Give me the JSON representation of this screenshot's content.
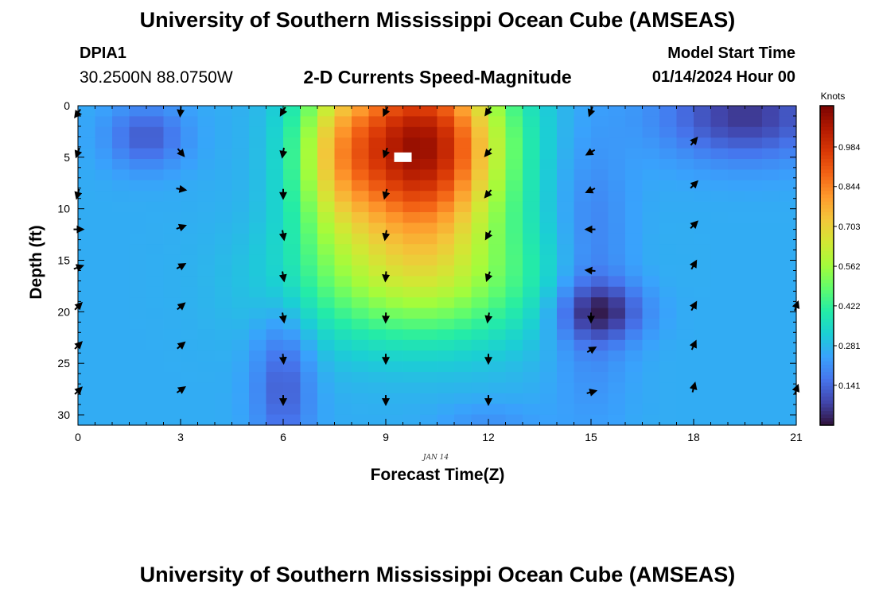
{
  "header": {
    "title": "University of Southern Mississippi Ocean Cube (AMSEAS)",
    "station_id": "DPIA1",
    "station_coords": "30.2500N  88.0750W",
    "subtitle": "2-D Currents Speed-Magnitude",
    "model_start_label": "Model Start Time",
    "model_start_value": "01/14/2024 Hour 00"
  },
  "footer": {
    "title": "University of Southern Mississippi Ocean Cube (AMSEAS)"
  },
  "chart_data": {
    "type": "heatmap",
    "title": "2-D Currents Speed-Magnitude",
    "xlabel": "Forecast Time(Z)",
    "ylabel": "Depth (ft)",
    "x_ticks": [
      0,
      3,
      6,
      9,
      12,
      15,
      18,
      21
    ],
    "y_ticks": [
      0,
      5,
      10,
      15,
      20,
      25,
      30
    ],
    "xlim": [
      0,
      21
    ],
    "ylim": [
      0,
      31
    ],
    "date_label": "JAN 14",
    "colorbar": {
      "label": "Knots",
      "ticks": [
        "0.984",
        "0.844",
        "0.703",
        "0.562",
        "0.422",
        "0.281",
        "0.141"
      ],
      "tick_values": [
        0.984,
        0.844,
        0.703,
        0.562,
        0.422,
        0.281,
        0.141
      ],
      "range": [
        0.0,
        1.13
      ],
      "colors": [
        "#30123b",
        "#4145ab",
        "#4675ed",
        "#39a2fc",
        "#1bcfd4",
        "#24eca6",
        "#61fc6c",
        "#a4fc3b",
        "#d1e834",
        "#f3c63a",
        "#fe9b2d",
        "#f36315",
        "#d93806",
        "#b11901",
        "#7a0402"
      ]
    },
    "speed_model": {
      "base": 0.26,
      "features": [
        {
          "name": "core-jet",
          "t": 10,
          "d": 4,
          "st": 1.7,
          "sd": 6.5,
          "amp": 0.82
        },
        {
          "name": "jet-lower",
          "t": 10,
          "d": 17,
          "st": 2.6,
          "sd": 4.5,
          "amp": 0.28
        },
        {
          "name": "left-jet-flank",
          "t": 7.5,
          "d": 5,
          "st": 0.9,
          "sd": 6,
          "amp": 0.25
        },
        {
          "name": "upper-left-slack",
          "t": 2,
          "d": 3,
          "st": 0.8,
          "sd": 2.2,
          "amp": -0.14
        },
        {
          "name": "slack-6h-column",
          "t": 6,
          "d": 27,
          "st": 0.6,
          "sd": 5,
          "amp": -0.14
        },
        {
          "name": "slack-15h-spot",
          "t": 15.3,
          "d": 20,
          "st": 0.9,
          "sd": 2,
          "amp": -0.19
        },
        {
          "name": "slack-15h-column",
          "t": 15,
          "d": 16,
          "st": 0.8,
          "sd": 9,
          "amp": -0.1
        },
        {
          "name": "upper-right-slack",
          "t": 19.5,
          "d": 1,
          "st": 1.7,
          "sd": 3,
          "amp": -0.2
        },
        {
          "name": "bottom-12h",
          "t": 12,
          "d": 31,
          "st": 1,
          "sd": 1.5,
          "amp": -0.05
        }
      ]
    },
    "vectors": [
      {
        "t": 0,
        "d": 0.7,
        "dir": 215
      },
      {
        "t": 0,
        "d": 4.5,
        "dir": 200
      },
      {
        "t": 0,
        "d": 8.5,
        "dir": 195
      },
      {
        "t": 0,
        "d": 12,
        "dir": 90
      },
      {
        "t": 0,
        "d": 15.7,
        "dir": 70
      },
      {
        "t": 0,
        "d": 19.5,
        "dir": 45
      },
      {
        "t": 0,
        "d": 23.3,
        "dir": 45
      },
      {
        "t": 0,
        "d": 27.7,
        "dir": 45
      },
      {
        "t": 3,
        "d": 0.5,
        "dir": 185
      },
      {
        "t": 3,
        "d": 4.5,
        "dir": 140
      },
      {
        "t": 3,
        "d": 8.1,
        "dir": 100
      },
      {
        "t": 3,
        "d": 11.8,
        "dir": 70
      },
      {
        "t": 3,
        "d": 15.6,
        "dir": 60
      },
      {
        "t": 3,
        "d": 19.5,
        "dir": 50
      },
      {
        "t": 3,
        "d": 23.3,
        "dir": 50
      },
      {
        "t": 3,
        "d": 27.6,
        "dir": 55
      },
      {
        "t": 6,
        "d": 0.5,
        "dir": 210
      },
      {
        "t": 6,
        "d": 4.5,
        "dir": 190
      },
      {
        "t": 6,
        "d": 8.5,
        "dir": 180
      },
      {
        "t": 6,
        "d": 12.5,
        "dir": 170
      },
      {
        "t": 6,
        "d": 16.5,
        "dir": 170
      },
      {
        "t": 6,
        "d": 20.5,
        "dir": 170
      },
      {
        "t": 6,
        "d": 24.5,
        "dir": 175
      },
      {
        "t": 6,
        "d": 28.5,
        "dir": 180
      },
      {
        "t": 9,
        "d": 0.5,
        "dir": 205
      },
      {
        "t": 9,
        "d": 4.5,
        "dir": 200
      },
      {
        "t": 9,
        "d": 8.5,
        "dir": 195
      },
      {
        "t": 9,
        "d": 12.5,
        "dir": 190
      },
      {
        "t": 9,
        "d": 16.5,
        "dir": 185
      },
      {
        "t": 9,
        "d": 20.5,
        "dir": 182
      },
      {
        "t": 9,
        "d": 24.5,
        "dir": 180
      },
      {
        "t": 9,
        "d": 28.5,
        "dir": 180
      },
      {
        "t": 12,
        "d": 0.5,
        "dir": 215
      },
      {
        "t": 12,
        "d": 4.5,
        "dir": 220
      },
      {
        "t": 12,
        "d": 8.5,
        "dir": 220
      },
      {
        "t": 12,
        "d": 12.5,
        "dir": 210
      },
      {
        "t": 12,
        "d": 16.5,
        "dir": 200
      },
      {
        "t": 12,
        "d": 20.5,
        "dir": 190
      },
      {
        "t": 12,
        "d": 24.5,
        "dir": 180
      },
      {
        "t": 12,
        "d": 28.5,
        "dir": 180
      },
      {
        "t": 15,
        "d": 0.5,
        "dir": 200
      },
      {
        "t": 15,
        "d": 4.5,
        "dir": 240
      },
      {
        "t": 15,
        "d": 8.2,
        "dir": 245
      },
      {
        "t": 15,
        "d": 12,
        "dir": 270
      },
      {
        "t": 15,
        "d": 16,
        "dir": 275
      },
      {
        "t": 15,
        "d": 20.5,
        "dir": 180
      },
      {
        "t": 15,
        "d": 23.7,
        "dir": 60
      },
      {
        "t": 15,
        "d": 27.8,
        "dir": 75
      },
      {
        "t": 18,
        "d": 3.5,
        "dir": 40
      },
      {
        "t": 18,
        "d": 7.7,
        "dir": 45
      },
      {
        "t": 18,
        "d": 11.6,
        "dir": 45
      },
      {
        "t": 18,
        "d": 15.5,
        "dir": 30
      },
      {
        "t": 18,
        "d": 19.5,
        "dir": 30
      },
      {
        "t": 18,
        "d": 23.3,
        "dir": 25
      },
      {
        "t": 18,
        "d": 27.4,
        "dir": 15
      },
      {
        "t": 21,
        "d": 19.5,
        "dir": 20
      },
      {
        "t": 21,
        "d": 27.6,
        "dir": 20
      }
    ],
    "markers": [
      {
        "t": 9.5,
        "d": 5,
        "color": "#ffffff"
      }
    ]
  }
}
